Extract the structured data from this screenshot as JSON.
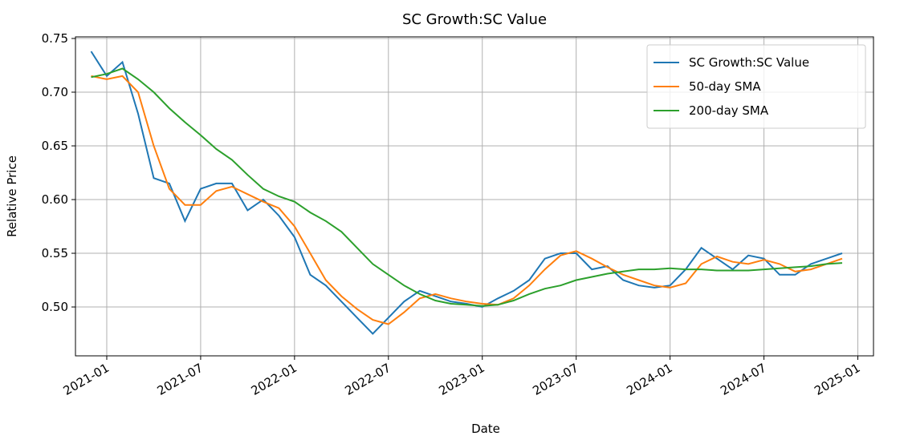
{
  "chart_data": {
    "type": "line",
    "title": "SC Growth:SC Value",
    "xlabel": "Date",
    "ylabel": "Relative Price",
    "x": [
      "2020-12",
      "2021-01",
      "2021-02",
      "2021-03",
      "2021-04",
      "2021-05",
      "2021-06",
      "2021-07",
      "2021-08",
      "2021-09",
      "2021-10",
      "2021-11",
      "2021-12",
      "2022-01",
      "2022-02",
      "2022-03",
      "2022-04",
      "2022-05",
      "2022-06",
      "2022-07",
      "2022-08",
      "2022-09",
      "2022-10",
      "2022-11",
      "2022-12",
      "2023-01",
      "2023-02",
      "2023-03",
      "2023-04",
      "2023-05",
      "2023-06",
      "2023-07",
      "2023-08",
      "2023-09",
      "2023-10",
      "2023-11",
      "2023-12",
      "2024-01",
      "2024-02",
      "2024-03",
      "2024-04",
      "2024-05",
      "2024-06",
      "2024-07",
      "2024-08",
      "2024-09",
      "2024-10",
      "2024-11",
      "2024-12"
    ],
    "series": [
      {
        "name": "SC Growth:SC Value",
        "color": "#1f77b4",
        "values": [
          0.738,
          0.715,
          0.728,
          0.68,
          0.62,
          0.615,
          0.58,
          0.61,
          0.615,
          0.615,
          0.59,
          0.6,
          0.585,
          0.565,
          0.53,
          0.52,
          0.505,
          0.49,
          0.475,
          0.49,
          0.505,
          0.515,
          0.51,
          0.505,
          0.503,
          0.5,
          0.508,
          0.515,
          0.525,
          0.545,
          0.55,
          0.55,
          0.535,
          0.538,
          0.525,
          0.52,
          0.518,
          0.52,
          0.535,
          0.555,
          0.545,
          0.535,
          0.548,
          0.545,
          0.53,
          0.53,
          0.54,
          0.545,
          0.55
        ]
      },
      {
        "name": "50-day SMA",
        "color": "#ff7f0e",
        "values": [
          0.715,
          0.712,
          0.715,
          0.7,
          0.65,
          0.61,
          0.595,
          0.595,
          0.608,
          0.612,
          0.605,
          0.598,
          0.592,
          0.575,
          0.55,
          0.525,
          0.51,
          0.498,
          0.488,
          0.484,
          0.495,
          0.508,
          0.512,
          0.508,
          0.505,
          0.503,
          0.502,
          0.508,
          0.52,
          0.535,
          0.548,
          0.552,
          0.545,
          0.537,
          0.53,
          0.525,
          0.52,
          0.518,
          0.522,
          0.54,
          0.547,
          0.542,
          0.54,
          0.544,
          0.54,
          0.533,
          0.535,
          0.54,
          0.545
        ]
      },
      {
        "name": "200-day SMA",
        "color": "#2ca02c",
        "values": [
          0.714,
          0.717,
          0.722,
          0.712,
          0.7,
          0.685,
          0.672,
          0.66,
          0.647,
          0.637,
          0.623,
          0.61,
          0.603,
          0.598,
          0.588,
          0.58,
          0.57,
          0.555,
          0.54,
          0.53,
          0.52,
          0.512,
          0.506,
          0.503,
          0.502,
          0.501,
          0.502,
          0.506,
          0.512,
          0.517,
          0.52,
          0.525,
          0.528,
          0.531,
          0.533,
          0.535,
          0.535,
          0.536,
          0.535,
          0.535,
          0.534,
          0.534,
          0.534,
          0.535,
          0.536,
          0.537,
          0.538,
          0.54,
          0.541
        ]
      }
    ],
    "xlim": [
      "2020-11",
      "2025-02"
    ],
    "xticks": [
      "2021-01",
      "2021-07",
      "2022-01",
      "2022-07",
      "2023-01",
      "2023-07",
      "2024-01",
      "2024-07",
      "2025-01"
    ],
    "ylim": [
      0.4545,
      0.7515
    ],
    "yticks": [
      {
        "value": 0.5,
        "label": "0.50"
      },
      0.55,
      {
        "value": 0.6,
        "label": "0.60"
      },
      0.65,
      {
        "value": 0.7,
        "label": "0.70"
      },
      0.75
    ],
    "grid": true,
    "legend": "upper right"
  }
}
